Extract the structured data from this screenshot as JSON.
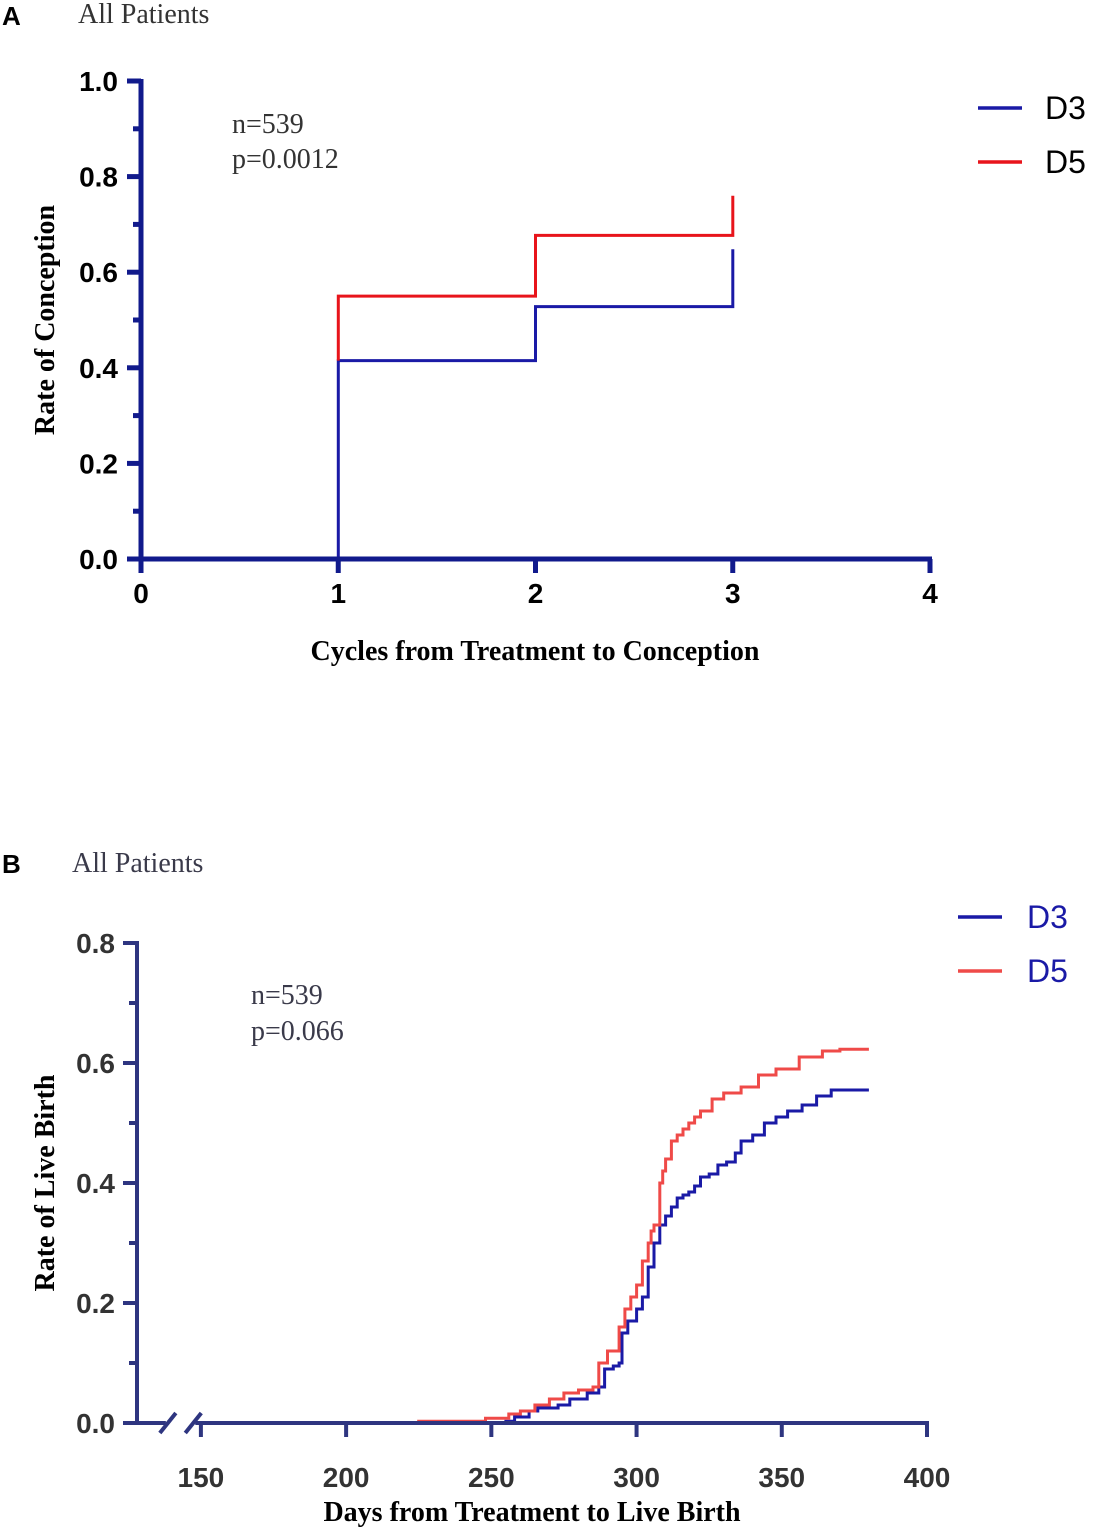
{
  "chart_data": [
    {
      "panel": "A",
      "title": "All Patients",
      "type": "line",
      "step": true,
      "xlabel": "Cycles from Treatment to Conception",
      "ylabel": "Rate of Conception",
      "xlim": [
        0,
        4
      ],
      "ylim": [
        0,
        1.0
      ],
      "xticks": [
        "0",
        "1",
        "2",
        "3",
        "4"
      ],
      "yticks": [
        "0.0",
        "0.2",
        "0.4",
        "0.6",
        "0.8",
        "1.0"
      ],
      "annotations": [
        "n=539",
        "p=0.0012"
      ],
      "legend_position": "top-right",
      "series": [
        {
          "name": "D3",
          "color": "#1a1aa6",
          "x": [
            0,
            1,
            1,
            2,
            2,
            3,
            3
          ],
          "y": [
            0,
            0,
            0.415,
            0.415,
            0.528,
            0.528,
            0.648
          ]
        },
        {
          "name": "D5",
          "color": "#e8141b",
          "x": [
            1,
            1,
            2,
            2,
            3,
            3
          ],
          "y": [
            0.415,
            0.55,
            0.55,
            0.677,
            0.677,
            0.76
          ]
        }
      ]
    },
    {
      "panel": "B",
      "title": "All Patients",
      "type": "line",
      "step": true,
      "xlabel": "Days from Treatment to Live Birth",
      "ylabel": "Rate of Live Birth",
      "xlim": [
        128,
        400
      ],
      "ylim": [
        0,
        0.8
      ],
      "xticks": [
        "150",
        "200",
        "250",
        "300",
        "350",
        "400"
      ],
      "yticks": [
        "0.0",
        "0.2",
        "0.4",
        "0.6",
        "0.8"
      ],
      "axis_break": "between 140 and 150",
      "annotations": [
        "n=539",
        "p=0.066"
      ],
      "legend_position": "top-right",
      "series": [
        {
          "name": "D3",
          "color": "#1a1aa6",
          "x": [
            128,
            255,
            258,
            263,
            266,
            273,
            277,
            283,
            287,
            289,
            292,
            294,
            295,
            297,
            300,
            302,
            304,
            306,
            308,
            310,
            312,
            314,
            316,
            318,
            320,
            322,
            325,
            328,
            331,
            334,
            336,
            340,
            344,
            348,
            352,
            357,
            362,
            367,
            380
          ],
          "y": [
            0,
            0.003,
            0.01,
            0.02,
            0.025,
            0.03,
            0.04,
            0.05,
            0.06,
            0.09,
            0.095,
            0.1,
            0.15,
            0.17,
            0.19,
            0.21,
            0.26,
            0.3,
            0.33,
            0.345,
            0.36,
            0.375,
            0.38,
            0.385,
            0.395,
            0.41,
            0.415,
            0.43,
            0.435,
            0.45,
            0.47,
            0.48,
            0.5,
            0.51,
            0.52,
            0.53,
            0.545,
            0.555,
            0.555
          ]
        },
        {
          "name": "D5",
          "color": "#ef4a48",
          "x": [
            128,
            225,
            248,
            256,
            260,
            265,
            270,
            275,
            280,
            285,
            287,
            290,
            294,
            296,
            298,
            300,
            302,
            304,
            305,
            306,
            308,
            309,
            310,
            312,
            314,
            316,
            318,
            320,
            322,
            326,
            330,
            336,
            342,
            348,
            356,
            364,
            370,
            380
          ],
          "y": [
            0,
            0.003,
            0.008,
            0.015,
            0.02,
            0.03,
            0.04,
            0.05,
            0.055,
            0.06,
            0.1,
            0.12,
            0.16,
            0.19,
            0.21,
            0.23,
            0.27,
            0.3,
            0.32,
            0.33,
            0.4,
            0.42,
            0.44,
            0.47,
            0.48,
            0.49,
            0.5,
            0.51,
            0.52,
            0.54,
            0.55,
            0.56,
            0.58,
            0.59,
            0.61,
            0.62,
            0.623,
            0.623
          ]
        }
      ]
    }
  ]
}
